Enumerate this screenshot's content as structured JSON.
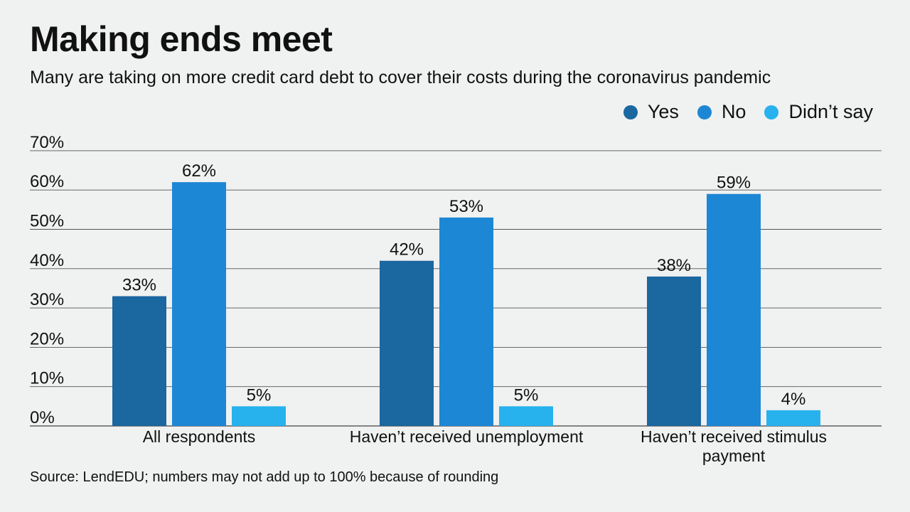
{
  "header": {
    "title": "Making ends meet",
    "subtitle": "Many are taking on more credit card debt to cover their costs during the coronavirus pandemic"
  },
  "footer": {
    "source": "Source: LendEDU; numbers may not add up to 100% because of rounding"
  },
  "colors": {
    "yes": "#1b67a0",
    "no": "#1c87d4",
    "didnt_say": "#27b2ee",
    "grid": "#555555"
  },
  "chart_data": {
    "type": "bar",
    "title": "Making ends meet",
    "subtitle": "Many are taking on more credit card debt to cover their costs during the coronavirus pandemic",
    "xlabel": "",
    "ylabel": "",
    "ylim": [
      0,
      70
    ],
    "yticks": [
      "0%",
      "10%",
      "20%",
      "30%",
      "40%",
      "50%",
      "60%",
      "70%"
    ],
    "grid": true,
    "legend_position": "top-right",
    "categories": [
      [
        "All respondents"
      ],
      [
        "Haven’t received unemployment"
      ],
      [
        "Haven’t received stimulus",
        "payment"
      ]
    ],
    "series": [
      {
        "name": "Yes",
        "values": [
          33,
          42,
          38
        ],
        "labels": [
          "33%",
          "42%",
          "38%"
        ],
        "color": "#1b67a0"
      },
      {
        "name": "No",
        "values": [
          62,
          53,
          59
        ],
        "labels": [
          "62%",
          "53%",
          "59%"
        ],
        "color": "#1c87d4"
      },
      {
        "name": "Didn’t say",
        "values": [
          5,
          5,
          4
        ],
        "labels": [
          "5%",
          "5%",
          "4%"
        ],
        "color": "#27b2ee"
      }
    ]
  }
}
